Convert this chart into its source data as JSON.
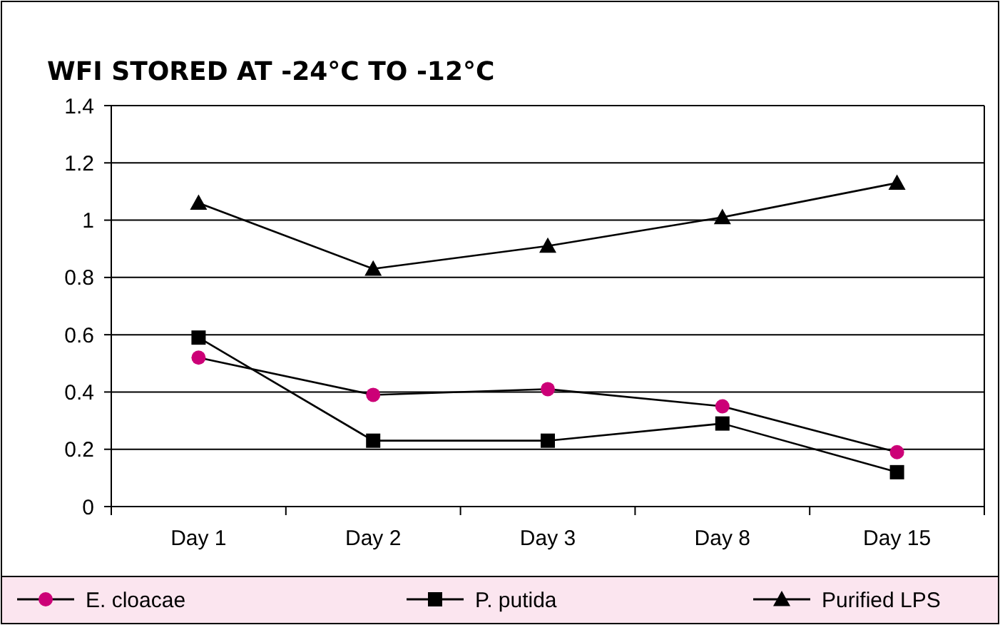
{
  "chart_data": {
    "type": "line",
    "title": "WFI STORED AT -24°C TO -12°C",
    "categories": [
      "Day 1",
      "Day 2",
      "Day 3",
      "Day 8",
      "Day 15"
    ],
    "series": [
      {
        "name": "E. cloacae",
        "color": "#cc0077",
        "marker": "circle",
        "values": [
          0.52,
          0.39,
          0.41,
          0.35,
          0.19
        ]
      },
      {
        "name": "P. putida",
        "color": "#000000",
        "marker": "square",
        "values": [
          0.59,
          0.23,
          0.23,
          0.29,
          0.12
        ]
      },
      {
        "name": "Purified LPS",
        "color": "#000000",
        "marker": "triangle",
        "values": [
          1.06,
          0.83,
          0.91,
          1.01,
          1.13
        ]
      }
    ],
    "ylim": [
      0,
      1.4
    ],
    "yticks": [
      0,
      0.2,
      0.4,
      0.6,
      0.8,
      1,
      1.2,
      1.4
    ],
    "grid": "y",
    "legend": "bottom"
  }
}
